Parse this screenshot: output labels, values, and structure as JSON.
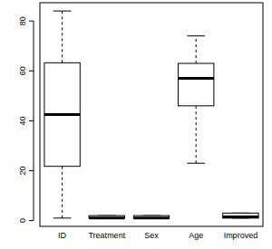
{
  "chart_data": {
    "type": "boxplot",
    "categories": [
      "ID",
      "Treatment",
      "Sex",
      "Age",
      "Improved"
    ],
    "min": [
      1,
      1,
      1,
      23,
      1
    ],
    "q1": [
      21.75,
      1,
      1,
      46,
      1
    ],
    "median": [
      42.5,
      1,
      1,
      57,
      1.5
    ],
    "q3": [
      63.25,
      2,
      2,
      63,
      3
    ],
    "max": [
      84,
      2,
      2,
      74,
      3
    ],
    "ylim": [
      -2.32,
      87.32
    ],
    "yticks": [
      0,
      20,
      40,
      60,
      80
    ]
  }
}
